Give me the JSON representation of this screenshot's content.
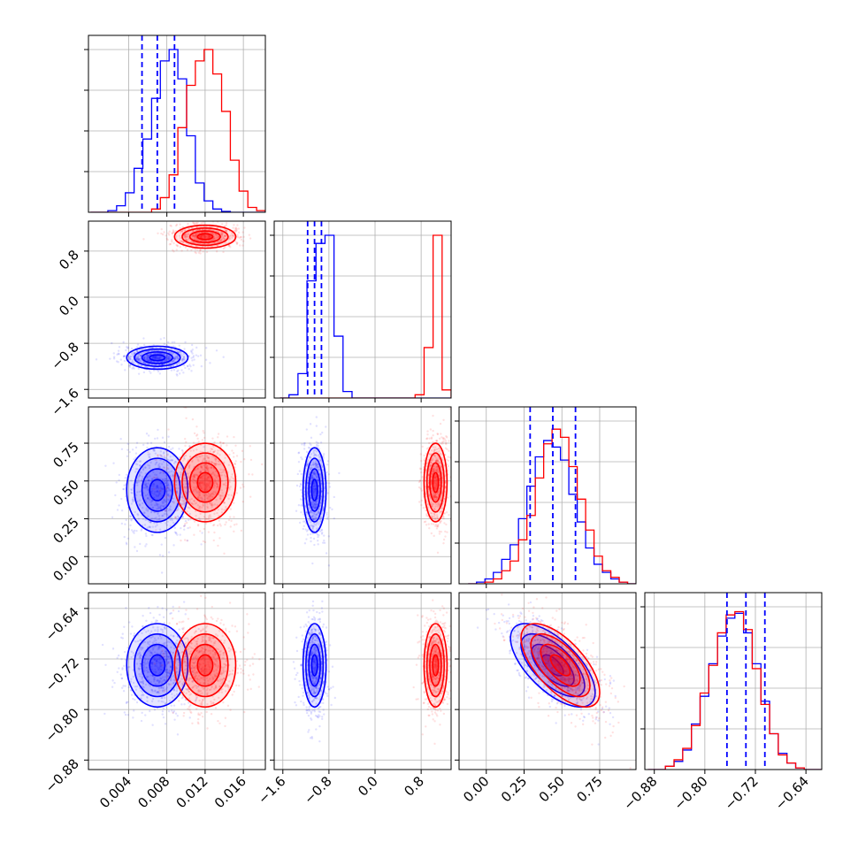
{
  "chart_data": {
    "type": "corner",
    "grid": true,
    "colors": {
      "series_a": "#0000ff",
      "series_b": "#ff0000"
    },
    "series": [
      {
        "color": "#0000ff",
        "means": [
          0.007,
          -1.05,
          0.44,
          -0.73
        ],
        "stds": [
          0.0016,
          0.1,
          0.14,
          0.033
        ]
      },
      {
        "color": "#ff0000",
        "means": [
          0.012,
          1.05,
          0.49,
          -0.73
        ],
        "stds": [
          0.0016,
          0.1,
          0.13,
          0.033
        ]
      }
    ],
    "correlations": {
      "2-3": -0.65
    },
    "quantile_lines": [
      [
        0.0054,
        0.007,
        0.0088
      ],
      [
        -1.17,
        -1.05,
        -0.93
      ],
      [
        0.29,
        0.44,
        0.59
      ],
      [
        -0.765,
        -0.735,
        -0.705
      ]
    ],
    "parameters": [
      {
        "range": [
          -0.0002,
          0.0183
        ],
        "ticks": [
          0.004,
          0.008,
          0.012,
          0.016
        ],
        "tick_labels": [
          "0.004",
          "0.008",
          "0.012",
          "0.016"
        ]
      },
      {
        "range": [
          -1.75,
          1.32
        ],
        "ticks": [
          -1.6,
          -0.8,
          0.0,
          0.8
        ],
        "tick_labels": [
          "−1.6",
          "−0.8",
          "0.0",
          "0.8"
        ]
      },
      {
        "range": [
          -0.18,
          0.99
        ],
        "ticks": [
          0.0,
          0.25,
          0.5,
          0.75
        ],
        "tick_labels": [
          "0.00",
          "0.25",
          "0.50",
          "0.75"
        ]
      },
      {
        "range": [
          -0.895,
          -0.615
        ],
        "ticks": [
          -0.88,
          -0.8,
          -0.72,
          -0.64
        ],
        "tick_labels": [
          "−0.88",
          "−0.80",
          "−0.72",
          "−0.64"
        ]
      }
    ],
    "histograms": [
      {
        "bins": 20,
        "blue": [
          0.0,
          0.0,
          0.01,
          0.04,
          0.12,
          0.27,
          0.45,
          0.7,
          0.93,
          1.0,
          0.82,
          0.47,
          0.18,
          0.07,
          0.02,
          0.005,
          0.0,
          0.0,
          0.0,
          0.0
        ],
        "red": [
          0.0,
          0.0,
          0.0,
          0.0,
          0.0,
          0.0,
          0.0,
          0.02,
          0.09,
          0.23,
          0.52,
          0.78,
          0.93,
          1.0,
          0.85,
          0.62,
          0.32,
          0.13,
          0.03,
          0.01
        ]
      },
      {
        "bins": 19,
        "blue": [
          0.0,
          0.02,
          0.15,
          0.72,
          0.95,
          1.0,
          0.38,
          0.04,
          0.0,
          0.0,
          0.0,
          0.0,
          0.0,
          0.0,
          0.0,
          0.0,
          0.0,
          0.0,
          0.0
        ],
        "red": [
          0.0,
          0.0,
          0.0,
          0.0,
          0.0,
          0.0,
          0.0,
          0.0,
          0.0,
          0.0,
          0.0,
          0.0,
          0.0,
          0.0,
          0.0,
          0.02,
          0.31,
          1.0,
          0.05
        ]
      },
      {
        "bins": 20,
        "blue": [
          0.0,
          0.01,
          0.03,
          0.07,
          0.15,
          0.24,
          0.4,
          0.6,
          0.78,
          0.88,
          0.84,
          0.76,
          0.55,
          0.38,
          0.22,
          0.12,
          0.07,
          0.03,
          0.01,
          0.0
        ],
        "red": [
          0.0,
          0.0,
          0.01,
          0.03,
          0.08,
          0.14,
          0.27,
          0.42,
          0.65,
          0.86,
          0.95,
          0.9,
          0.72,
          0.52,
          0.33,
          0.17,
          0.08,
          0.04,
          0.01,
          0.0
        ]
      },
      {
        "bins": 20,
        "blue": [
          0.0,
          0.0,
          0.02,
          0.05,
          0.12,
          0.28,
          0.45,
          0.65,
          0.82,
          0.93,
          0.96,
          0.84,
          0.65,
          0.42,
          0.22,
          0.1,
          0.04,
          0.01,
          0.0,
          0.0
        ],
        "red": [
          0.0,
          0.0,
          0.02,
          0.06,
          0.13,
          0.27,
          0.47,
          0.64,
          0.84,
          0.95,
          0.97,
          0.86,
          0.62,
          0.4,
          0.22,
          0.09,
          0.04,
          0.01,
          0.0,
          0.0
        ]
      }
    ]
  }
}
